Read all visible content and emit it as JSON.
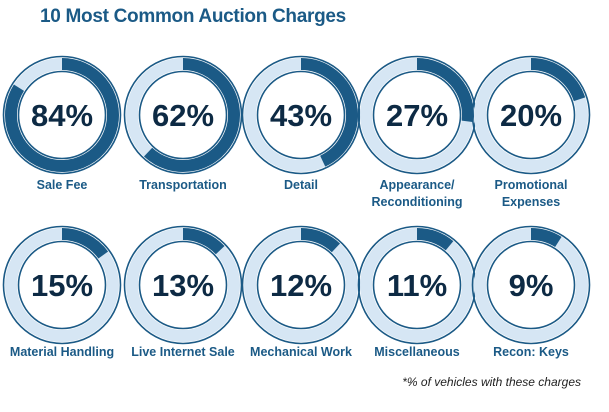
{
  "title": "10 Most Common Auction Charges",
  "footnote": "*% of vehicles with these charges",
  "chart_data": {
    "type": "donut",
    "title": "10 Most Common Auction Charges",
    "unit": "%",
    "items": [
      {
        "label": [
          "Sale Fee"
        ],
        "value": 84
      },
      {
        "label": [
          "Transportation"
        ],
        "value": 62
      },
      {
        "label": [
          "Detail"
        ],
        "value": 43
      },
      {
        "label": [
          "Appearance/",
          "Reconditioning"
        ],
        "value": 27
      },
      {
        "label": [
          "Promotional",
          "Expenses"
        ],
        "value": 20
      },
      {
        "label": [
          "Material Handling"
        ],
        "value": 15
      },
      {
        "label": [
          "Live Internet Sale"
        ],
        "value": 13
      },
      {
        "label": [
          "Mechanical Work"
        ],
        "value": 12
      },
      {
        "label": [
          "Miscellaneous"
        ],
        "value": 11
      },
      {
        "label": [
          "Recon: Keys"
        ],
        "value": 9
      }
    ],
    "colors": {
      "arc": "#1b5a86",
      "track": "#d6e6f4",
      "outline": "#1b5a86",
      "value_text": "#0d2a44",
      "label_text": "#1b5a86"
    }
  }
}
